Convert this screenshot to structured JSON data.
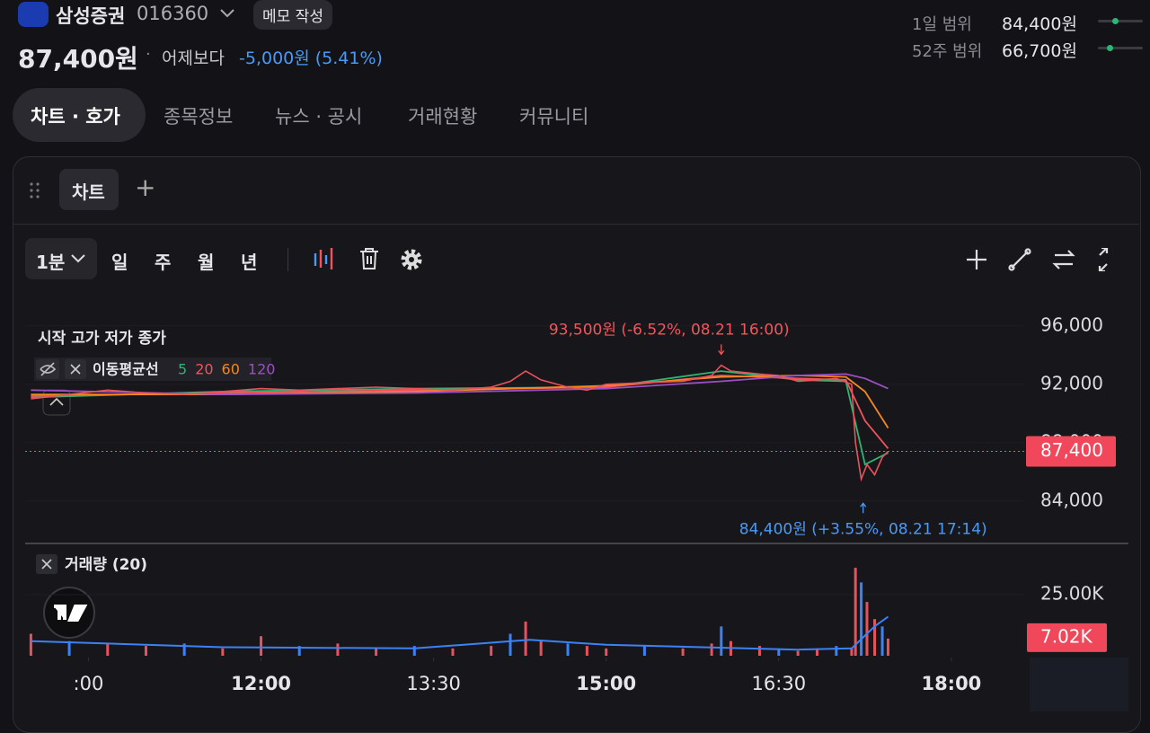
{
  "header": {
    "name": "삼성증권",
    "code": "016360",
    "memo": "메모 작성",
    "price": "87,400원",
    "separator": "·",
    "compare": "어제보다",
    "change": "-5,000원 (5.41%)",
    "ranges": [
      {
        "label": "1일 범위",
        "value": "84,400원"
      },
      {
        "label": "52주 범위",
        "value": "66,700원"
      }
    ]
  },
  "tabs": [
    "차트 · 호가",
    "종목정보",
    "뉴스 · 공시",
    "거래현황",
    "커뮤니티"
  ],
  "panel": {
    "tab": "차트",
    "add": "+"
  },
  "toolbar": {
    "interval": "1분",
    "periods": [
      "일",
      "주",
      "월",
      "년"
    ]
  },
  "chart_data": [
    {
      "type": "line",
      "legend": "시작 고가 저가 종가",
      "ma_title": "이동평균선",
      "color": "#e8525c",
      "x": [
        600,
        620,
        640,
        660,
        680,
        700,
        720,
        740,
        760,
        780,
        800,
        820,
        840,
        850,
        858,
        866,
        880,
        890,
        900,
        920,
        940,
        955,
        960,
        965,
        980,
        990,
        1000,
        1010,
        1020,
        1028,
        1030,
        1033,
        1036,
        1040,
        1044,
        1047
      ],
      "values": [
        91000,
        91300,
        91600,
        91400,
        91300,
        91500,
        91700,
        91600,
        91700,
        91800,
        91700,
        91600,
        91800,
        92200,
        92900,
        92300,
        91800,
        91600,
        92000,
        92100,
        92200,
        92600,
        93300,
        92900,
        92700,
        92600,
        92200,
        92300,
        92400,
        92000,
        88000,
        85500,
        86500,
        85800,
        87000,
        87400
      ],
      "moving_averages": [
        {
          "name": "5",
          "color": "#2bb673",
          "x": [
            600,
            700,
            800,
            900,
            960,
            1000,
            1025,
            1035,
            1047
          ],
          "values": [
            91100,
            91500,
            91700,
            91800,
            92900,
            92300,
            92200,
            86500,
            87300
          ]
        },
        {
          "name": "20",
          "color": "#f2545b",
          "x": [
            600,
            700,
            800,
            900,
            960,
            1000,
            1025,
            1035,
            1047
          ],
          "values": [
            91200,
            91400,
            91600,
            91800,
            92600,
            92400,
            92300,
            89500,
            87600
          ]
        },
        {
          "name": "60",
          "color": "#f5871f",
          "x": [
            600,
            700,
            800,
            900,
            960,
            1000,
            1025,
            1035,
            1047
          ],
          "values": [
            91300,
            91300,
            91500,
            91900,
            92500,
            92600,
            92500,
            91500,
            89000
          ]
        },
        {
          "name": "120",
          "color": "#9c4fc4",
          "x": [
            600,
            700,
            800,
            900,
            960,
            1000,
            1025,
            1035,
            1047
          ],
          "values": [
            91600,
            91300,
            91400,
            91700,
            92200,
            92600,
            92700,
            92400,
            91700
          ]
        }
      ],
      "xlim": [
        597,
        1118
      ],
      "ylim": [
        81400,
        97400
      ],
      "yticks": [
        {
          "value": 96000,
          "label": "96,000"
        },
        {
          "value": 92000,
          "label": "92,000"
        },
        {
          "value": 88000,
          "label": "88,000"
        },
        {
          "value": 84000,
          "label": "84,000"
        }
      ],
      "annotations": [
        {
          "text": "93,500원 (-6.52%, 08.21 16:00)",
          "x": 960,
          "y": 93500,
          "color": "#f2545b"
        },
        {
          "text": "84,400원 (+3.55%, 08.21 17:14)",
          "x": 1034,
          "y": 84400,
          "color": "#4a9af5"
        }
      ],
      "current": {
        "value": 87400,
        "label": "87,400"
      }
    },
    {
      "type": "bar",
      "title": "거래량 (20)",
      "color": "#e8525c",
      "ma_color": "#3b82f6",
      "x": [
        600,
        620,
        640,
        660,
        680,
        700,
        720,
        740,
        760,
        780,
        800,
        820,
        840,
        850,
        858,
        866,
        880,
        890,
        900,
        920,
        940,
        955,
        960,
        965,
        980,
        990,
        1000,
        1010,
        1020,
        1028,
        1030,
        1033,
        1036,
        1040,
        1044,
        1047
      ],
      "values": [
        9000,
        6000,
        5000,
        4000,
        5000,
        3000,
        8000,
        4000,
        5000,
        3000,
        4000,
        3000,
        4000,
        9000,
        14000,
        6000,
        5000,
        4000,
        3000,
        4000,
        3000,
        5000,
        12000,
        6000,
        4000,
        3000,
        2000,
        3000,
        4000,
        3000,
        36000,
        30000,
        22000,
        15000,
        12000,
        7020
      ],
      "ma": {
        "x": [
          600,
          700,
          800,
          860,
          900,
          1000,
          1028,
          1040,
          1047
        ],
        "values": [
          6000,
          3500,
          3000,
          6500,
          4500,
          2500,
          3000,
          12000,
          16000
        ]
      },
      "xlim": [
        597,
        1118
      ],
      "ylim": [
        0,
        44100
      ],
      "yticks": [
        {
          "value": 25000,
          "label": "25.00K"
        }
      ],
      "xticks": [
        {
          "value": 630,
          "label": ":00"
        },
        {
          "value": 720,
          "label": "12:00"
        },
        {
          "value": 810,
          "label": "13:30"
        },
        {
          "value": 900,
          "label": "15:00"
        },
        {
          "value": 990,
          "label": "16:30"
        },
        {
          "value": 1080,
          "label": "18:00"
        }
      ],
      "current": {
        "value": 7020,
        "label": "7.02K"
      }
    }
  ]
}
